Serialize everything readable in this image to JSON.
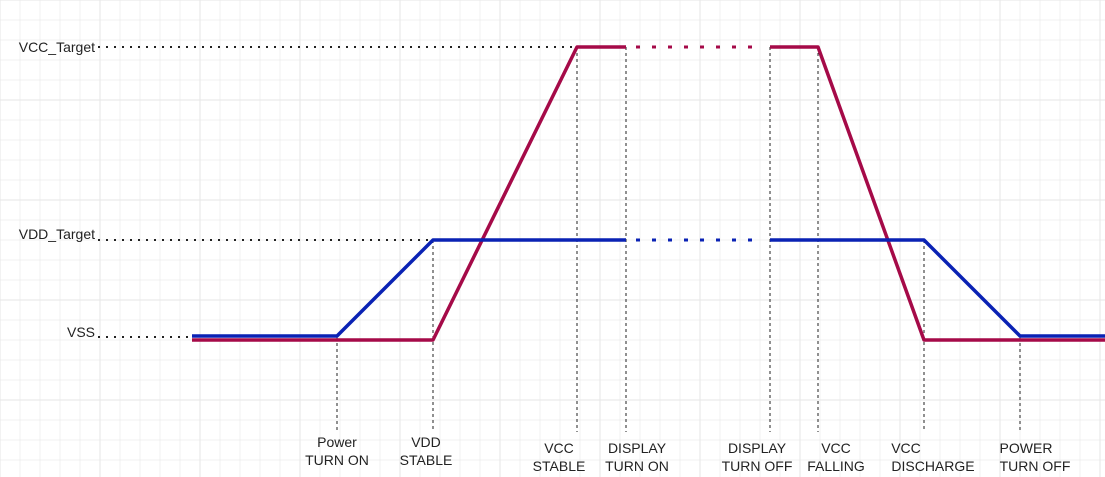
{
  "colors": {
    "vcc": "#a50a48",
    "vdd": "#0a22b4",
    "grid": "#e6e6e6",
    "guide": "#222222",
    "text": "#222222"
  },
  "levels": [
    {
      "id": "vcc-target",
      "label": "VCC_Target"
    },
    {
      "id": "vdd-target",
      "label": "VDD_Target"
    },
    {
      "id": "vss",
      "label": "VSS"
    }
  ],
  "events": [
    {
      "id": "power-turn-on",
      "line1": "Power",
      "line2": "TURN ON"
    },
    {
      "id": "vdd-stable",
      "line1": "VDD",
      "line2": "STABLE"
    },
    {
      "id": "vcc-stable",
      "line1": "VCC",
      "line2": "STABLE"
    },
    {
      "id": "display-turn-on",
      "line1": "DISPLAY",
      "line2": "TURN ON"
    },
    {
      "id": "display-turn-off",
      "line1": "DISPLAY",
      "line2": "TURN OFF"
    },
    {
      "id": "vcc-falling",
      "line1": "VCC",
      "line2": "FALLING"
    },
    {
      "id": "vcc-discharge",
      "line1": "VCC",
      "line2": "DISCHARGE"
    },
    {
      "id": "power-turn-off",
      "line1": "POWER",
      "line2": "TURN OFF"
    }
  ]
}
